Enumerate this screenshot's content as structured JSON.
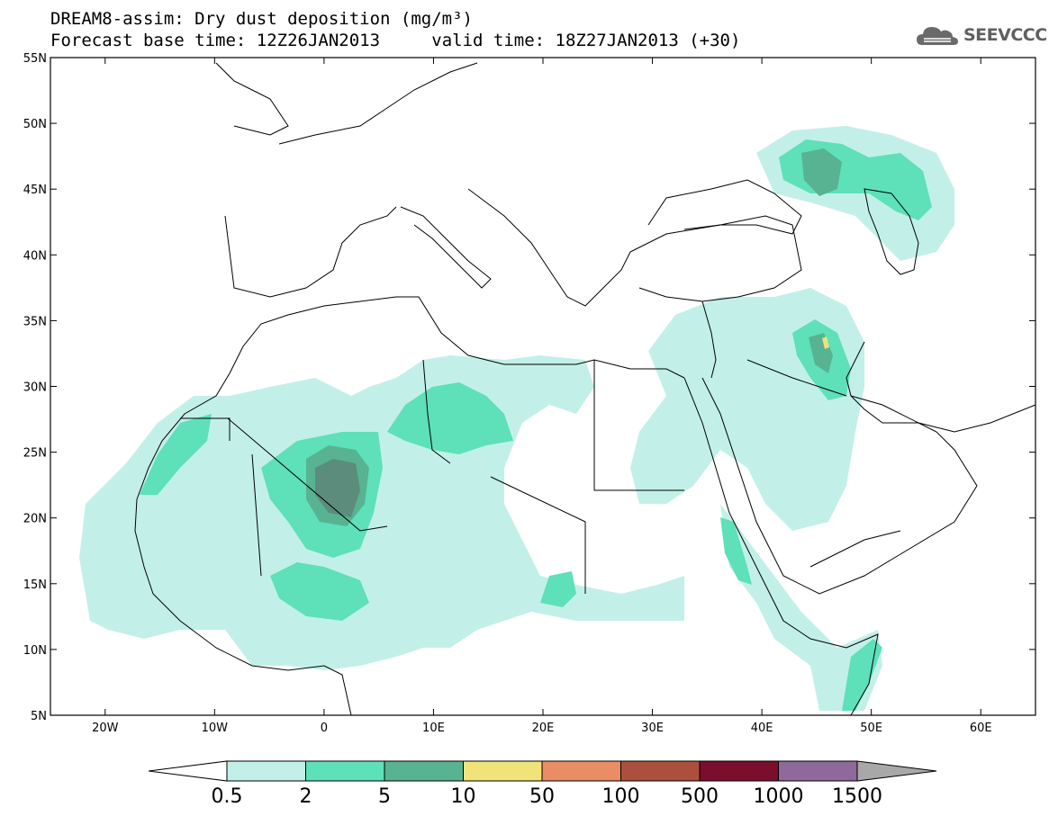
{
  "header": {
    "title_line1": "DREAM8-assim: Dry dust deposition (mg/m³)",
    "base_time_label": "Forecast base time: 12Z26JAN2013",
    "valid_time_label": "valid time: 18Z27JAN2013 (+30)",
    "logo_text": "SEEVCCC"
  },
  "map": {
    "lon_range": [
      -25,
      65
    ],
    "lat_range": [
      5,
      55
    ],
    "lat_labels": [
      "55N",
      "50N",
      "45N",
      "40N",
      "35N",
      "30N",
      "25N",
      "20N",
      "15N",
      "10N",
      "5N"
    ],
    "lon_labels": [
      "20W",
      "10W",
      "0",
      "10E",
      "20E",
      "30E",
      "40E",
      "50E",
      "60E"
    ],
    "fill_colors": {
      "c05": "#c2f0e8",
      "c2": "#5ee0b9",
      "c5": "#57b391",
      "c10": "#5c8c7c",
      "c50": "#f0e07a"
    }
  },
  "colorbar": {
    "levels": [
      "0.5",
      "2",
      "5",
      "10",
      "50",
      "100",
      "500",
      "1000",
      "1500"
    ],
    "colors": [
      "#c2f0e8",
      "#5ee0b9",
      "#57b391",
      "#f0e37a",
      "#ea8c64",
      "#ad4f3d",
      "#7a0e2c",
      "#8e6999",
      "#a8a8a8"
    ],
    "under_color": "#ffffff"
  }
}
